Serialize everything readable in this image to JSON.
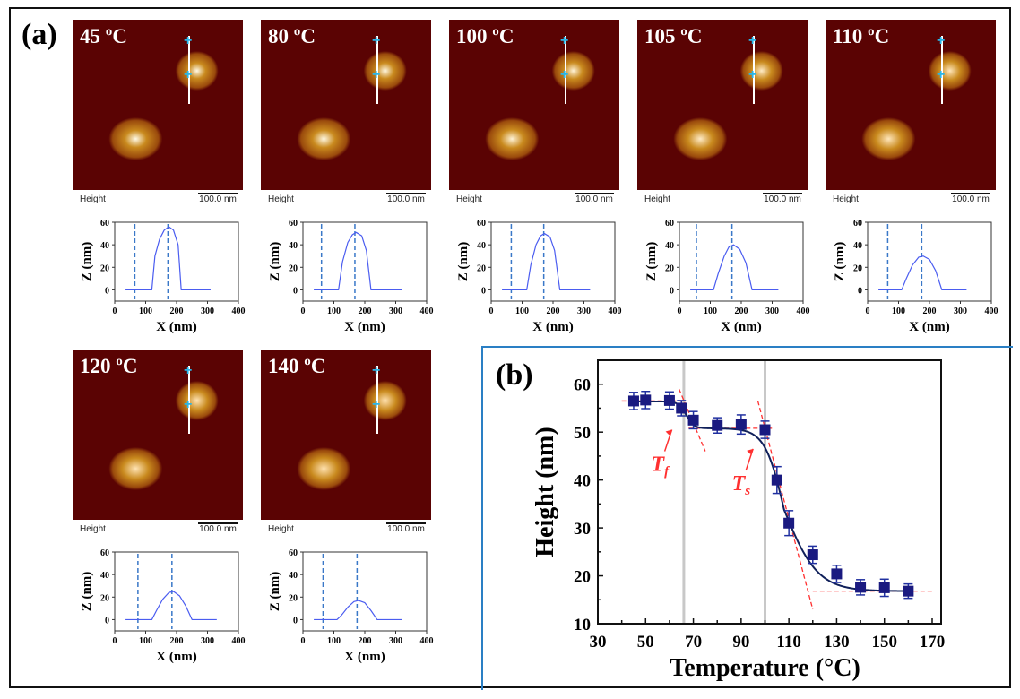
{
  "panel_a_label": "(a)",
  "panel_b_label": "(b)",
  "height_label": "Height",
  "scale_bar_label": "100.0 nm",
  "colors": {
    "afm_background": "#5a0303",
    "profile_line": "#4a5cf0",
    "marker": "#1a1a80",
    "fit_line": "#10205a",
    "tangent": "#ff3030",
    "marker_cross": "#29b6e8"
  },
  "chart_data": [
    {
      "type": "line",
      "panel": "a",
      "title": "45 ºC",
      "xlabel": "X (nm)",
      "ylabel": "Z (nm)",
      "xlim": [
        0,
        400
      ],
      "ylim": [
        -10,
        60
      ],
      "xticks": [
        0,
        100,
        200,
        300,
        400
      ],
      "yticks": [
        0,
        20,
        40,
        60
      ],
      "markers_x": [
        65,
        172
      ],
      "x": [
        35,
        120,
        130,
        145,
        160,
        175,
        190,
        205,
        215,
        250,
        310
      ],
      "z": [
        0,
        0,
        30,
        45,
        53,
        56,
        53,
        40,
        0,
        0,
        0
      ]
    },
    {
      "type": "line",
      "panel": "a",
      "title": "80 ºC",
      "xlabel": "X (nm)",
      "ylabel": "Z (nm)",
      "xlim": [
        0,
        400
      ],
      "ylim": [
        -10,
        60
      ],
      "xticks": [
        0,
        100,
        200,
        300,
        400
      ],
      "yticks": [
        0,
        20,
        40,
        60
      ],
      "markers_x": [
        60,
        168
      ],
      "x": [
        35,
        115,
        128,
        145,
        160,
        172,
        190,
        205,
        220,
        250,
        320
      ],
      "z": [
        0,
        0,
        25,
        42,
        49,
        51,
        48,
        35,
        0,
        0,
        0
      ]
    },
    {
      "type": "line",
      "panel": "a",
      "title": "100 ºC",
      "xlabel": "X (nm)",
      "ylabel": "Z (nm)",
      "xlim": [
        0,
        400
      ],
      "ylim": [
        -10,
        60
      ],
      "xticks": [
        0,
        100,
        200,
        300,
        400
      ],
      "yticks": [
        0,
        20,
        40,
        60
      ],
      "markers_x": [
        65,
        170
      ],
      "x": [
        35,
        115,
        128,
        145,
        160,
        172,
        190,
        205,
        222,
        250,
        320
      ],
      "z": [
        0,
        0,
        22,
        40,
        48,
        50,
        47,
        35,
        0,
        0,
        0
      ]
    },
    {
      "type": "line",
      "panel": "a",
      "title": "105 ºC",
      "xlabel": "X (nm)",
      "ylabel": "Z (nm)",
      "xlim": [
        0,
        400
      ],
      "ylim": [
        -10,
        60
      ],
      "xticks": [
        0,
        100,
        200,
        300,
        400
      ],
      "yticks": [
        0,
        20,
        40,
        60
      ],
      "markers_x": [
        55,
        170
      ],
      "x": [
        35,
        110,
        125,
        145,
        160,
        175,
        195,
        215,
        235,
        260,
        320
      ],
      "z": [
        0,
        0,
        14,
        30,
        38,
        40,
        36,
        24,
        0,
        0,
        0
      ]
    },
    {
      "type": "line",
      "panel": "a",
      "title": "110 ºC",
      "xlabel": "X (nm)",
      "ylabel": "Z (nm)",
      "xlim": [
        0,
        400
      ],
      "ylim": [
        -10,
        60
      ],
      "xticks": [
        0,
        100,
        200,
        300,
        400
      ],
      "yticks": [
        0,
        20,
        40,
        60
      ],
      "markers_x": [
        65,
        175
      ],
      "x": [
        35,
        110,
        125,
        145,
        165,
        180,
        200,
        220,
        240,
        260,
        320
      ],
      "z": [
        0,
        0,
        10,
        22,
        29,
        30,
        27,
        17,
        0,
        0,
        0
      ]
    },
    {
      "type": "line",
      "panel": "a",
      "title": "120 ºC",
      "xlabel": "X (nm)",
      "ylabel": "Z (nm)",
      "xlim": [
        0,
        400
      ],
      "ylim": [
        -10,
        60
      ],
      "xticks": [
        0,
        100,
        200,
        300,
        400
      ],
      "yticks": [
        0,
        20,
        40,
        60
      ],
      "markers_x": [
        75,
        185
      ],
      "x": [
        35,
        120,
        135,
        155,
        175,
        190,
        210,
        230,
        250,
        280,
        330
      ],
      "z": [
        0,
        0,
        8,
        18,
        24,
        25,
        21,
        12,
        0,
        0,
        0
      ]
    },
    {
      "type": "line",
      "panel": "a",
      "title": "140 ºC",
      "xlabel": "X (nm)",
      "ylabel": "Z (nm)",
      "xlim": [
        0,
        400
      ],
      "ylim": [
        -10,
        60
      ],
      "xticks": [
        0,
        100,
        200,
        300,
        400
      ],
      "yticks": [
        0,
        20,
        40,
        60
      ],
      "markers_x": [
        65,
        175
      ],
      "x": [
        35,
        110,
        125,
        145,
        165,
        180,
        200,
        220,
        240,
        260,
        320
      ],
      "z": [
        0,
        0,
        4,
        11,
        16,
        17,
        15,
        8,
        0,
        0,
        0
      ]
    },
    {
      "type": "scatter",
      "panel": "b",
      "xlabel": "Temperature (°C)",
      "ylabel": "Height (nm)",
      "xlim": [
        30,
        170
      ],
      "ylim": [
        10,
        65
      ],
      "xticks": [
        30,
        50,
        70,
        90,
        110,
        130,
        150,
        170
      ],
      "yticks": [
        10,
        20,
        30,
        40,
        50,
        60
      ],
      "x": [
        45,
        50,
        60,
        65,
        70,
        80,
        90,
        100,
        105,
        110,
        120,
        130,
        140,
        150,
        160
      ],
      "y": [
        56.5,
        56.7,
        56.6,
        55.0,
        52.5,
        51.4,
        51.6,
        50.5,
        40.0,
        31.0,
        24.4,
        20.4,
        17.6,
        17.5,
        16.8
      ],
      "error": [
        1.8,
        1.8,
        1.8,
        1.6,
        1.8,
        1.6,
        2.0,
        1.8,
        2.8,
        2.6,
        1.8,
        1.8,
        1.6,
        1.8,
        1.5
      ],
      "vertical_lines": [
        66,
        100
      ],
      "annotations": [
        {
          "text": "T",
          "sub": "f",
          "x": 57,
          "y": 43
        },
        {
          "text": "T",
          "sub": "s",
          "x": 91,
          "y": 39
        }
      ]
    }
  ]
}
